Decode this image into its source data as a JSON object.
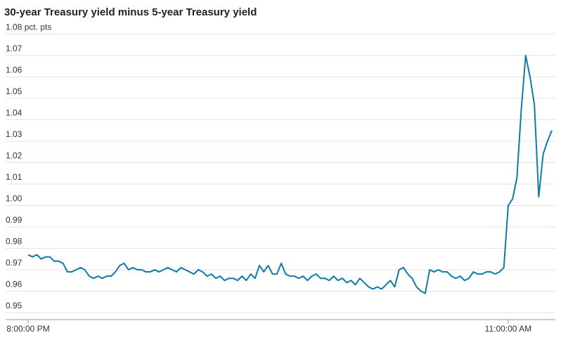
{
  "chart_data": {
    "type": "line",
    "title": "30-year Treasury yield minus 5-year Treasury yield",
    "categories": [
      "8:00:00 PM",
      null,
      null,
      null,
      null,
      null,
      null,
      null,
      null,
      null,
      null,
      null,
      null,
      null,
      null,
      null,
      null,
      null,
      null,
      null,
      null,
      null,
      null,
      null,
      null,
      null,
      null,
      null,
      null,
      null,
      null,
      null,
      null,
      null,
      null,
      null,
      null,
      null,
      null,
      null,
      null,
      null,
      null,
      null,
      null,
      null,
      null,
      null,
      null,
      null,
      null,
      null,
      null,
      null,
      null,
      null,
      null,
      null,
      null,
      null,
      null,
      null,
      null,
      null,
      null,
      null,
      null,
      null,
      null,
      null,
      null,
      null,
      null,
      null,
      null,
      null,
      null,
      null,
      null,
      null,
      null,
      null,
      null,
      null,
      null,
      null,
      null,
      null,
      null,
      null,
      null,
      null,
      null,
      null,
      null,
      null,
      null,
      null,
      null,
      null,
      null,
      null,
      null,
      null,
      null,
      null,
      null,
      null,
      null,
      null,
      "11:00:00 AM",
      null,
      null,
      null,
      null,
      null,
      null,
      null,
      null,
      null,
      null
    ],
    "values": [
      0.977,
      0.976,
      0.977,
      0.975,
      0.976,
      0.976,
      0.974,
      0.974,
      0.973,
      0.969,
      0.969,
      0.97,
      0.971,
      0.97,
      0.967,
      0.966,
      0.967,
      0.966,
      0.967,
      0.967,
      0.969,
      0.972,
      0.973,
      0.97,
      0.971,
      0.97,
      0.97,
      0.969,
      0.969,
      0.97,
      0.969,
      0.97,
      0.971,
      0.97,
      0.969,
      0.971,
      0.97,
      0.969,
      0.968,
      0.97,
      0.969,
      0.967,
      0.968,
      0.966,
      0.967,
      0.965,
      0.966,
      0.966,
      0.965,
      0.967,
      0.965,
      0.968,
      0.966,
      0.972,
      0.969,
      0.972,
      0.968,
      0.968,
      0.973,
      0.968,
      0.967,
      0.967,
      0.966,
      0.967,
      0.965,
      0.967,
      0.968,
      0.966,
      0.966,
      0.965,
      0.967,
      0.965,
      0.966,
      0.964,
      0.965,
      0.963,
      0.966,
      0.964,
      0.962,
      0.961,
      0.962,
      0.961,
      0.963,
      0.965,
      0.962,
      0.97,
      0.971,
      0.968,
      0.966,
      0.962,
      0.96,
      0.959,
      0.97,
      0.969,
      0.97,
      0.969,
      0.969,
      0.967,
      0.966,
      0.967,
      0.965,
      0.966,
      0.969,
      0.968,
      0.968,
      0.969,
      0.969,
      0.968,
      0.969,
      0.971,
      1.0,
      1.003,
      1.013,
      1.045,
      1.07,
      1.06,
      1.047,
      1.004,
      1.024,
      1.03,
      1.035
    ],
    "color": "#0f7aa8",
    "ylim": [
      0.95,
      1.08
    ],
    "yticks": [
      0.95,
      0.96,
      0.97,
      0.98,
      0.99,
      {
        "value": 1,
        "label": "1.00"
      },
      1.01,
      1.02,
      1.03,
      1.04,
      1.05,
      1.06,
      1.07,
      {
        "value": 1.08,
        "label": "1.08 pct. pts"
      }
    ],
    "grid": true
  }
}
